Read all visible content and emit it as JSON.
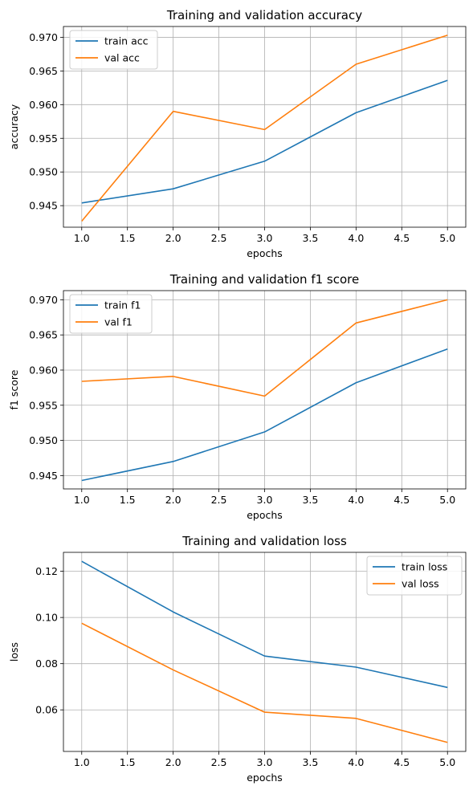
{
  "chart_data": [
    {
      "type": "line",
      "title": "Training and validation accuracy",
      "xlabel": "epochs",
      "ylabel": "accuracy",
      "x": [
        1,
        2,
        3,
        4,
        5
      ],
      "xticks": [
        1.0,
        1.5,
        2.0,
        2.5,
        3.0,
        3.5,
        4.0,
        4.5,
        5.0
      ],
      "xtick_labels": [
        "1.0",
        "1.5",
        "2.0",
        "2.5",
        "3.0",
        "3.5",
        "4.0",
        "4.5",
        "5.0"
      ],
      "yticks": [
        0.945,
        0.95,
        0.955,
        0.96,
        0.965,
        0.97
      ],
      "ytick_labels": [
        "0.945",
        "0.950",
        "0.955",
        "0.960",
        "0.965",
        "0.970"
      ],
      "xlim": [
        0.8,
        5.2
      ],
      "ylim": [
        0.9418,
        0.9716
      ],
      "grid": true,
      "legend_position": "upper-left",
      "series": [
        {
          "name": "train acc",
          "color": "#1f77b4",
          "values": [
            0.9454,
            0.9475,
            0.9516,
            0.9588,
            0.9636
          ]
        },
        {
          "name": "val acc",
          "color": "#ff7f0e",
          "values": [
            0.9427,
            0.959,
            0.9563,
            0.966,
            0.9703
          ]
        }
      ]
    },
    {
      "type": "line",
      "title": "Training and validation f1 score",
      "xlabel": "epochs",
      "ylabel": "f1 score",
      "x": [
        1,
        2,
        3,
        4,
        5
      ],
      "xticks": [
        1.0,
        1.5,
        2.0,
        2.5,
        3.0,
        3.5,
        4.0,
        4.5,
        5.0
      ],
      "xtick_labels": [
        "1.0",
        "1.5",
        "2.0",
        "2.5",
        "3.0",
        "3.5",
        "4.0",
        "4.5",
        "5.0"
      ],
      "yticks": [
        0.945,
        0.95,
        0.955,
        0.96,
        0.965,
        0.97
      ],
      "ytick_labels": [
        "0.945",
        "0.950",
        "0.955",
        "0.960",
        "0.965",
        "0.970"
      ],
      "xlim": [
        0.8,
        5.2
      ],
      "ylim": [
        0.9431,
        0.9713
      ],
      "grid": true,
      "legend_position": "upper-left",
      "series": [
        {
          "name": "train f1",
          "color": "#1f77b4",
          "values": [
            0.9443,
            0.947,
            0.9512,
            0.9582,
            0.963
          ]
        },
        {
          "name": "val f1",
          "color": "#ff7f0e",
          "values": [
            0.9584,
            0.9591,
            0.9563,
            0.9667,
            0.97
          ]
        }
      ]
    },
    {
      "type": "line",
      "title": "Training and validation loss",
      "xlabel": "epochs",
      "ylabel": "loss",
      "x": [
        1,
        2,
        3,
        4,
        5
      ],
      "xticks": [
        1.0,
        1.5,
        2.0,
        2.5,
        3.0,
        3.5,
        4.0,
        4.5,
        5.0
      ],
      "xtick_labels": [
        "1.0",
        "1.5",
        "2.0",
        "2.5",
        "3.0",
        "3.5",
        "4.0",
        "4.5",
        "5.0"
      ],
      "yticks": [
        0.06,
        0.08,
        0.1,
        0.12
      ],
      "ytick_labels": [
        "0.06",
        "0.08",
        "0.10",
        "0.12"
      ],
      "xlim": [
        0.8,
        5.2
      ],
      "ylim": [
        0.042,
        0.1282
      ],
      "grid": true,
      "legend_position": "upper-right",
      "series": [
        {
          "name": "train loss",
          "color": "#1f77b4",
          "values": [
            0.1243,
            0.1024,
            0.0833,
            0.0785,
            0.0697
          ]
        },
        {
          "name": "val loss",
          "color": "#ff7f0e",
          "values": [
            0.0975,
            0.0773,
            0.059,
            0.0563,
            0.0459
          ]
        }
      ]
    }
  ]
}
